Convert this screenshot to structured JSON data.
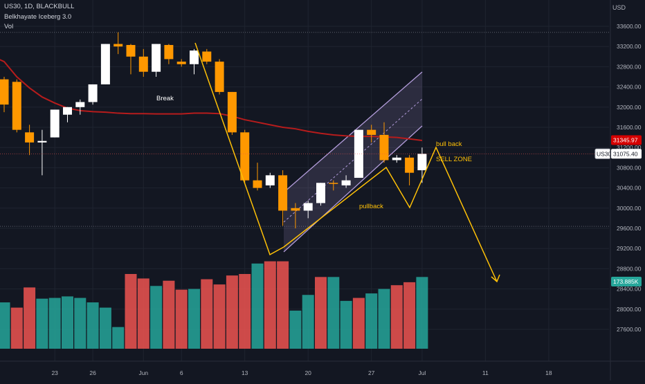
{
  "header": {
    "symbol_line": "US30, 1D, BLACKBULL",
    "indicator": "Belkhayate Iceberg 3.0",
    "volume_label": "Vol"
  },
  "axis": {
    "currency": "USD"
  },
  "price_tags": {
    "red_line": {
      "text": "31345.97",
      "bg": "#d50000"
    },
    "last": {
      "label": "US30",
      "text": "31075.40",
      "bg": "#ffffff"
    },
    "volume": {
      "text": "173.885K",
      "bg": "#26a69a"
    }
  },
  "annotations": {
    "break": "Break",
    "bull_back": "bull back",
    "sell_zone": "SELL ZONE",
    "pullback": "pullback"
  },
  "chart_data": {
    "type": "candlestick",
    "ylim": [
      27250,
      33850
    ],
    "y_ticks": [
      27600,
      28000,
      28400,
      28800,
      29200,
      29600,
      30000,
      30400,
      30800,
      31200,
      31600,
      32000,
      32400,
      32800,
      33200,
      33600
    ],
    "x_labels": [
      "23",
      "26",
      "Jun",
      "6",
      "13",
      "20",
      "27",
      "Jul",
      "11",
      "18"
    ],
    "colors": {
      "up": "#ffffff",
      "down": "#ff9800",
      "vol_up": "#26a69a",
      "vol_down": "#ef5350",
      "ma": "#b71c1c",
      "drawing": "#ffc107",
      "channel": "#b39ddb"
    },
    "candles": [
      {
        "o": 32550,
        "h": 32600,
        "c": 32050,
        "l": 31900
      },
      {
        "o": 32500,
        "h": 32550,
        "c": 31550,
        "l": 31500
      },
      {
        "o": 31500,
        "h": 31650,
        "c": 31300,
        "l": 31050
      },
      {
        "o": 31300,
        "h": 31550,
        "c": 31330,
        "l": 30650
      },
      {
        "o": 31400,
        "h": 31950,
        "c": 31950,
        "l": 31400
      },
      {
        "o": 31850,
        "h": 32000,
        "c": 32000,
        "l": 31700
      },
      {
        "o": 32000,
        "h": 32150,
        "c": 32100,
        "l": 31850
      },
      {
        "o": 32100,
        "h": 32450,
        "c": 32450,
        "l": 32050
      },
      {
        "o": 32450,
        "h": 33250,
        "c": 33250,
        "l": 32450
      },
      {
        "o": 33250,
        "h": 33480,
        "c": 33200,
        "l": 33050
      },
      {
        "o": 33230,
        "h": 33250,
        "c": 33000,
        "l": 32650
      },
      {
        "o": 33000,
        "h": 33150,
        "c": 32700,
        "l": 32600
      },
      {
        "o": 32700,
        "h": 33250,
        "c": 33250,
        "l": 32600
      },
      {
        "o": 33230,
        "h": 33250,
        "c": 32950,
        "l": 32850
      },
      {
        "o": 32900,
        "h": 32950,
        "c": 32850,
        "l": 32800
      },
      {
        "o": 32850,
        "h": 33150,
        "c": 33120,
        "l": 32650
      },
      {
        "o": 33100,
        "h": 33150,
        "c": 32900,
        "l": 32850
      },
      {
        "o": 32900,
        "h": 32950,
        "c": 32300,
        "l": 32250
      },
      {
        "o": 32300,
        "h": 32300,
        "c": 31500,
        "l": 31450
      },
      {
        "o": 31500,
        "h": 31550,
        "c": 30550,
        "l": 30500
      },
      {
        "o": 30550,
        "h": 30900,
        "c": 30400,
        "l": 30350
      },
      {
        "o": 30450,
        "h": 30700,
        "c": 30650,
        "l": 30400
      },
      {
        "o": 30650,
        "h": 30750,
        "c": 29950,
        "l": 29650
      },
      {
        "o": 30000,
        "h": 30100,
        "c": 29950,
        "l": 29600
      },
      {
        "o": 29950,
        "h": 30150,
        "c": 30100,
        "l": 29800
      },
      {
        "o": 30100,
        "h": 30500,
        "c": 30500,
        "l": 30050
      },
      {
        "o": 30500,
        "h": 30550,
        "c": 30480,
        "l": 30350
      },
      {
        "o": 30450,
        "h": 30650,
        "c": 30550,
        "l": 30400
      },
      {
        "o": 30600,
        "h": 31550,
        "c": 31550,
        "l": 30600
      },
      {
        "o": 31550,
        "h": 31650,
        "c": 31450,
        "l": 31300
      },
      {
        "o": 31450,
        "h": 31700,
        "c": 30950,
        "l": 30900
      },
      {
        "o": 30950,
        "h": 31050,
        "c": 31000,
        "l": 30900
      },
      {
        "o": 31000,
        "h": 31050,
        "c": 30700,
        "l": 30450
      },
      {
        "o": 30750,
        "h": 31200,
        "c": 31075,
        "l": 30500
      }
    ],
    "volume": [
      {
        "v": 0.62,
        "d": "up"
      },
      {
        "v": 0.55,
        "d": "down"
      },
      {
        "v": 0.82,
        "d": "down"
      },
      {
        "v": 0.67,
        "d": "up"
      },
      {
        "v": 0.68,
        "d": "up"
      },
      {
        "v": 0.7,
        "d": "up"
      },
      {
        "v": 0.68,
        "d": "up"
      },
      {
        "v": 0.62,
        "d": "up"
      },
      {
        "v": 0.55,
        "d": "up"
      },
      {
        "v": 0.29,
        "d": "up"
      },
      {
        "v": 1.0,
        "d": "down"
      },
      {
        "v": 0.94,
        "d": "down"
      },
      {
        "v": 0.84,
        "d": "up"
      },
      {
        "v": 0.91,
        "d": "down"
      },
      {
        "v": 0.79,
        "d": "down"
      },
      {
        "v": 0.8,
        "d": "up"
      },
      {
        "v": 0.93,
        "d": "down"
      },
      {
        "v": 0.86,
        "d": "down"
      },
      {
        "v": 0.98,
        "d": "down"
      },
      {
        "v": 1.0,
        "d": "down"
      },
      {
        "v": 1.14,
        "d": "up"
      },
      {
        "v": 1.17,
        "d": "down"
      },
      {
        "v": 1.17,
        "d": "down"
      },
      {
        "v": 0.51,
        "d": "up"
      },
      {
        "v": 0.72,
        "d": "up"
      },
      {
        "v": 0.96,
        "d": "down"
      },
      {
        "v": 0.96,
        "d": "up"
      },
      {
        "v": 0.64,
        "d": "up"
      },
      {
        "v": 0.68,
        "d": "down"
      },
      {
        "v": 0.74,
        "d": "up"
      },
      {
        "v": 0.8,
        "d": "up"
      },
      {
        "v": 0.85,
        "d": "down"
      },
      {
        "v": 0.89,
        "d": "down"
      },
      {
        "v": 0.96,
        "d": "up"
      }
    ],
    "ma": [
      32900,
      32600,
      32380,
      32200,
      32080,
      31980,
      31930,
      31910,
      31900,
      31880,
      31870,
      31870,
      31865,
      31865,
      31865,
      31880,
      31880,
      31870,
      31820,
      31750,
      31700,
      31650,
      31600,
      31570,
      31520,
      31480,
      31450,
      31430,
      31420,
      31420,
      31410,
      31400,
      31370,
      31340
    ],
    "hlines": [
      33480,
      29640
    ],
    "last_price": 31075.4,
    "ma_last": 31345.97
  }
}
